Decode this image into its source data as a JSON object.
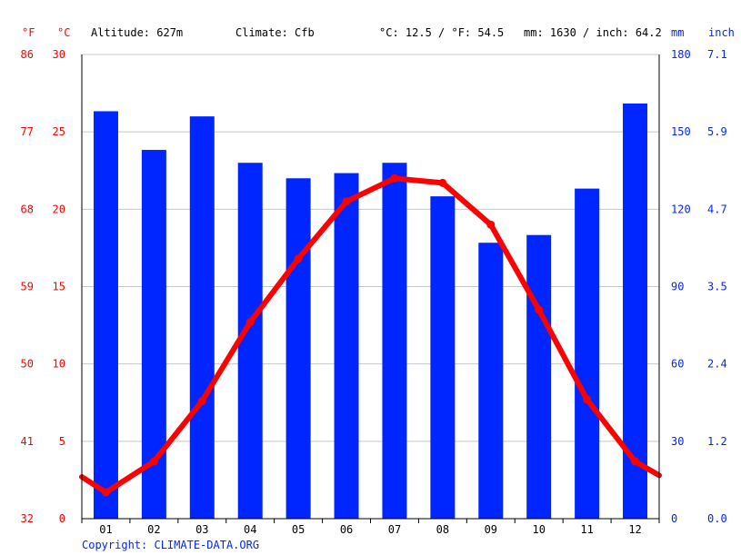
{
  "header": {
    "unit_f": "°F",
    "unit_c": "°C",
    "altitude": "Altitude: 627m",
    "climate": "Climate: Cfb",
    "temp_avg": "°C: 12.5 / °F: 54.5",
    "precip_total": "mm: 1630 / inch: 64.2",
    "unit_mm": "mm",
    "unit_inch": "inch"
  },
  "copyright": "Copyright: CLIMATE-DATA.ORG",
  "colors": {
    "precip_bar": "#0026ff",
    "temp_line": "#ff0000",
    "grid": "#c8c8c8",
    "axis": "#000000"
  },
  "chart_data": {
    "type": "bar",
    "categories": [
      "01",
      "02",
      "03",
      "04",
      "05",
      "06",
      "07",
      "08",
      "09",
      "10",
      "11",
      "12"
    ],
    "series": [
      {
        "kind": "bar",
        "axis": "mm",
        "values": [
          158,
          143,
          156,
          138,
          132,
          134,
          138,
          125,
          107,
          110,
          128,
          161
        ]
      },
      {
        "kind": "line",
        "axis": "celsius",
        "values": [
          1.7,
          3.7,
          7.6,
          12.7,
          16.8,
          20.5,
          22.0,
          21.7,
          19.0,
          13.5,
          7.7,
          3.7
        ],
        "edge_start": 2.7,
        "edge_end": 2.8
      }
    ],
    "axes": {
      "celsius": {
        "ylim": [
          0,
          30
        ],
        "ticks": [
          "0",
          "5",
          "10",
          "15",
          "20",
          "25",
          "30"
        ]
      },
      "fahrenheit": {
        "ticks": [
          "32",
          "41",
          "50",
          "59",
          "68",
          "77",
          "86"
        ]
      },
      "mm": {
        "ylim": [
          0,
          180
        ],
        "ticks": [
          "0",
          "30",
          "60",
          "90",
          "120",
          "150",
          "180"
        ]
      },
      "inch": {
        "ticks": [
          "0.0",
          "1.2",
          "2.4",
          "3.5",
          "4.7",
          "5.9",
          "7.1"
        ]
      }
    },
    "grid": true
  }
}
